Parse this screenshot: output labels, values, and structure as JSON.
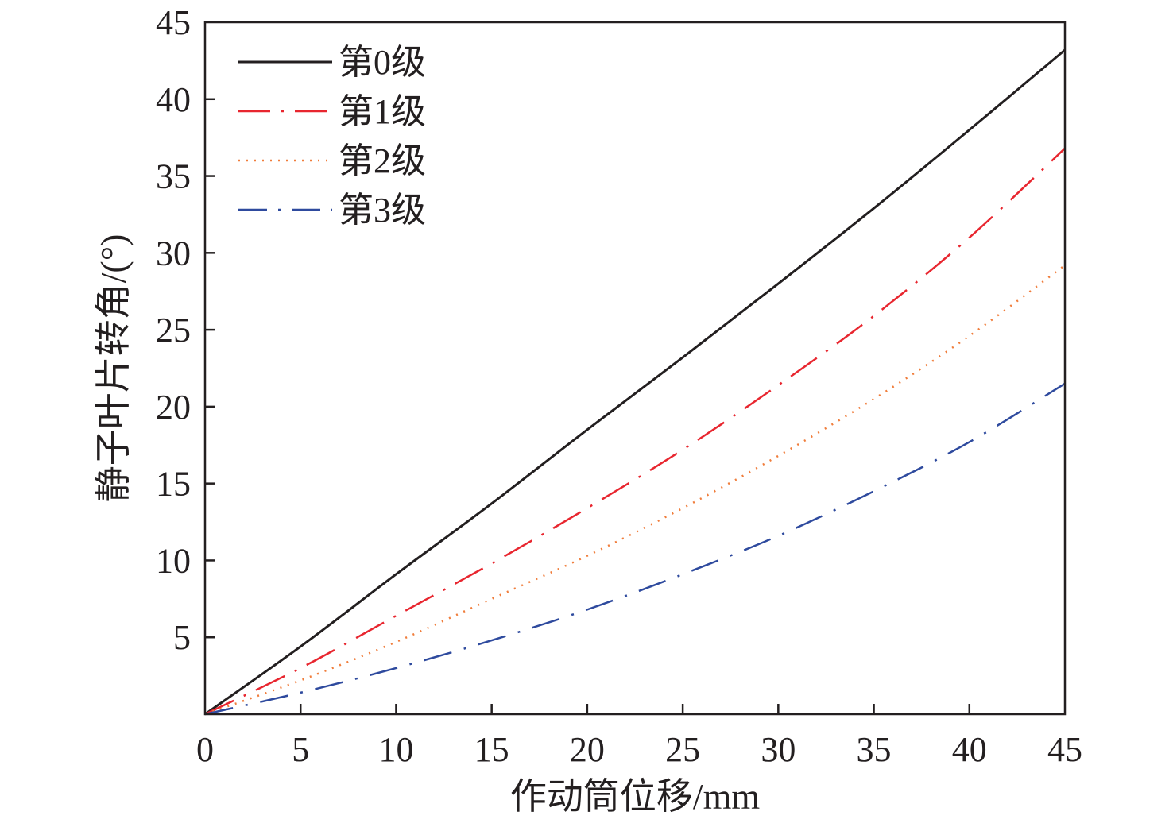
{
  "chart_data": {
    "type": "line",
    "title": "",
    "xlabel": "作动筒位移/mm",
    "ylabel": "静子叶片转角/(°)",
    "xlim": [
      0,
      45
    ],
    "ylim": [
      0,
      45
    ],
    "xticks": [
      0,
      5,
      10,
      15,
      20,
      25,
      30,
      35,
      40,
      45
    ],
    "yticks": [
      5,
      10,
      15,
      20,
      25,
      30,
      35,
      40,
      45
    ],
    "grid": false,
    "legend_position": "top-left",
    "series": [
      {
        "name": "第0级",
        "color": "#231f20",
        "style": "solid",
        "x": [
          0,
          5,
          10,
          15,
          20,
          25,
          30,
          35,
          40,
          45
        ],
        "y": [
          0,
          4.4,
          9.1,
          13.7,
          18.5,
          23.2,
          28.0,
          32.9,
          38.0,
          43.2
        ]
      },
      {
        "name": "第1级",
        "color": "#e8262f",
        "style": "dash-dot",
        "x": [
          0,
          5,
          10,
          15,
          20,
          25,
          30,
          35,
          40,
          45
        ],
        "y": [
          0,
          3.0,
          6.4,
          9.8,
          13.4,
          17.2,
          21.4,
          25.9,
          31.0,
          36.8
        ]
      },
      {
        "name": "第2级",
        "color": "#f07d3b",
        "style": "dotted",
        "x": [
          0,
          5,
          10,
          15,
          20,
          25,
          30,
          35,
          40,
          45
        ],
        "y": [
          0,
          2.2,
          4.7,
          7.5,
          10.3,
          13.4,
          16.8,
          20.5,
          24.6,
          29.2
        ]
      },
      {
        "name": "第3级",
        "color": "#2e4a9e",
        "style": "dash-dot-long",
        "x": [
          0,
          5,
          10,
          15,
          20,
          25,
          30,
          35,
          40,
          45
        ],
        "y": [
          0,
          1.4,
          3.0,
          4.8,
          6.8,
          9.1,
          11.6,
          14.5,
          17.7,
          21.5
        ]
      }
    ]
  }
}
